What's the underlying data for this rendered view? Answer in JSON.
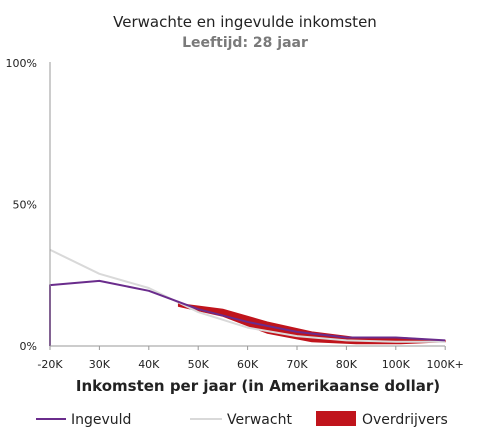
{
  "chart_data": {
    "type": "line",
    "title": "Verwachte en ingevulde inkomsten",
    "subtitle": "Leeftijd: 28 jaar",
    "xlabel": "Inkomsten per jaar (in Amerikaanse dollar)",
    "ylabel": "",
    "categories": [
      "-20K",
      "30K",
      "40K",
      "50K",
      "60K",
      "70K",
      "80K",
      "100K",
      "100K+"
    ],
    "y_ticks": [
      "0%",
      "50%",
      "100%"
    ],
    "ylim": [
      0,
      100
    ],
    "grid": false,
    "legend_position": "bottom",
    "series": [
      {
        "name": "Ingevuld",
        "color": "#6a2c8c",
        "values": [
          21.5,
          23,
          19.5,
          13,
          8.5,
          5,
          3,
          3,
          2
        ]
      },
      {
        "name": "Verwacht",
        "color": "#d9d9d9",
        "values": [
          34,
          25.5,
          20.5,
          12,
          6.5,
          3.5,
          2,
          1.5,
          1.5
        ]
      }
    ],
    "band": {
      "name": "Overdrijvers",
      "color": "#c0141c",
      "from_index": 2.6,
      "upper": [
        15,
        13,
        8.5,
        5,
        3,
        3,
        2
      ],
      "lower": [
        14,
        10.5,
        4.5,
        1.5,
        0.8,
        0.8,
        1.5
      ]
    },
    "legend": [
      "Ingevuld",
      "Verwacht",
      "Overdrijvers"
    ]
  }
}
